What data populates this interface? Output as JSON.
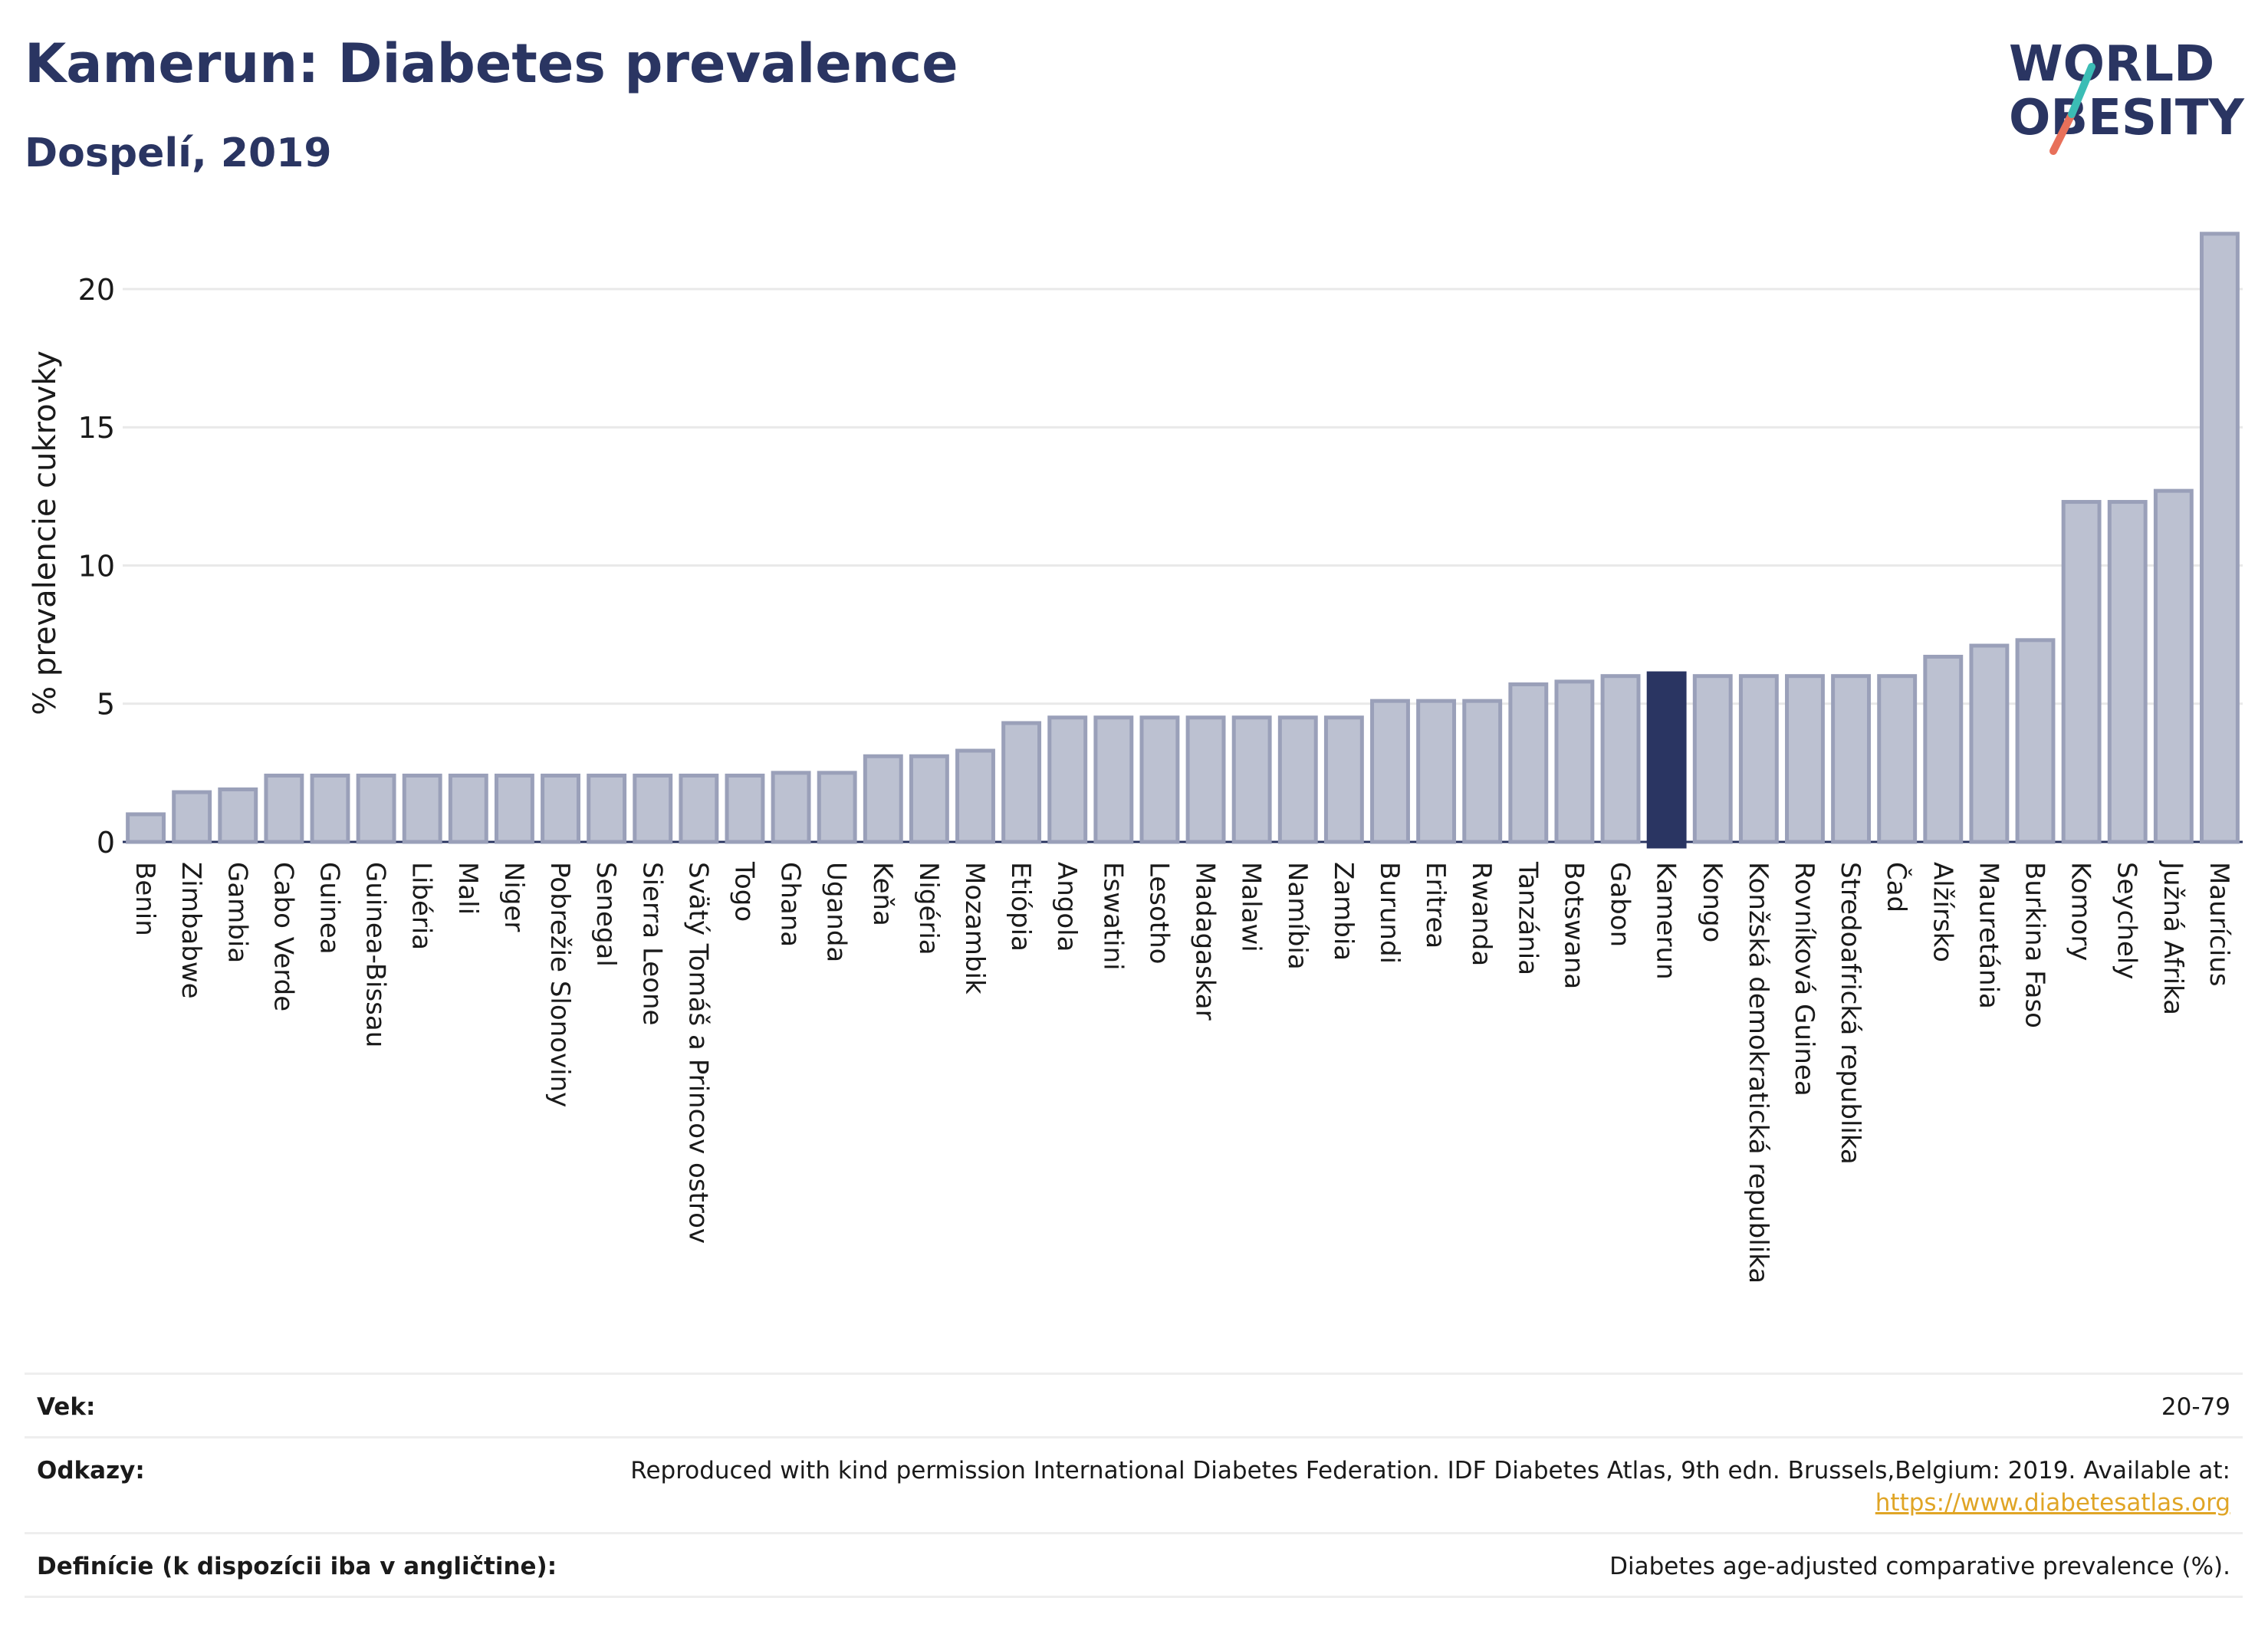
{
  "header": {
    "title": "Kamerun: Diabetes prevalence",
    "subtitle": "Dospelí, 2019"
  },
  "logo": {
    "line1": "WORLD",
    "line2": "OBESITY"
  },
  "chart_data": {
    "type": "bar",
    "ylabel": "% prevalencie cukrovky",
    "ylim": [
      0,
      22.8
    ],
    "yticks": [
      0,
      5,
      10,
      15,
      20
    ],
    "grid": true,
    "highlight": "Kamerun",
    "colors": {
      "bar_fill": "#bcc1d1",
      "bar_edge": "#9aa0b9",
      "highlight": "#2a3562",
      "grid": "#e9e9e9",
      "axis": "#2a3562"
    },
    "categories": [
      "Benin",
      "Zimbabwe",
      "Gambia",
      "Cabo Verde",
      "Guinea",
      "Guinea-Bissau",
      "Libéria",
      "Mali",
      "Niger",
      "Pobrežie Slonoviny",
      "Senegal",
      "Sierra Leone",
      "Svätý Tomáš a Princov ostrov",
      "Togo",
      "Ghana",
      "Uganda",
      "Keňa",
      "Nigéria",
      "Mozambik",
      "Etiópia",
      "Angola",
      "Eswatini",
      "Lesotho",
      "Madagaskar",
      "Malawi",
      "Namíbia",
      "Zambia",
      "Burundi",
      "Eritrea",
      "Rwanda",
      "Tanzánia",
      "Botswana",
      "Gabon",
      "Kamerun",
      "Kongo",
      "Konžská demokratická republika",
      "Rovníková Guinea",
      "Stredoafrická republika",
      "Čad",
      "Alžírsko",
      "Mauretánia",
      "Burkina Faso",
      "Komory",
      "Seychely",
      "Južná Afrika",
      "Maurícius"
    ],
    "values": [
      1.0,
      1.8,
      1.9,
      2.4,
      2.4,
      2.4,
      2.4,
      2.4,
      2.4,
      2.4,
      2.4,
      2.4,
      2.4,
      2.4,
      2.5,
      2.5,
      3.1,
      3.1,
      3.3,
      4.3,
      4.5,
      4.5,
      4.5,
      4.5,
      4.5,
      4.5,
      4.5,
      5.1,
      5.1,
      5.1,
      5.7,
      5.8,
      6.0,
      6.1,
      6.0,
      6.0,
      6.0,
      6.0,
      6.0,
      6.7,
      7.1,
      7.3,
      12.3,
      12.3,
      12.7,
      22.0
    ]
  },
  "footer": {
    "rows": [
      {
        "label": "Vek:",
        "value": "20-79"
      },
      {
        "label": "Odkazy:",
        "value": "Reproduced with kind permission International Diabetes Federation. IDF Diabetes Atlas, 9th edn. Brussels,Belgium: 2019. Available at:",
        "link": "https://www.diabetesatlas.org"
      },
      {
        "label": "Definície (k dispozícii iba v angličtine):",
        "value": "Diabetes age-adjusted comparative prevalence (%)."
      }
    ]
  }
}
